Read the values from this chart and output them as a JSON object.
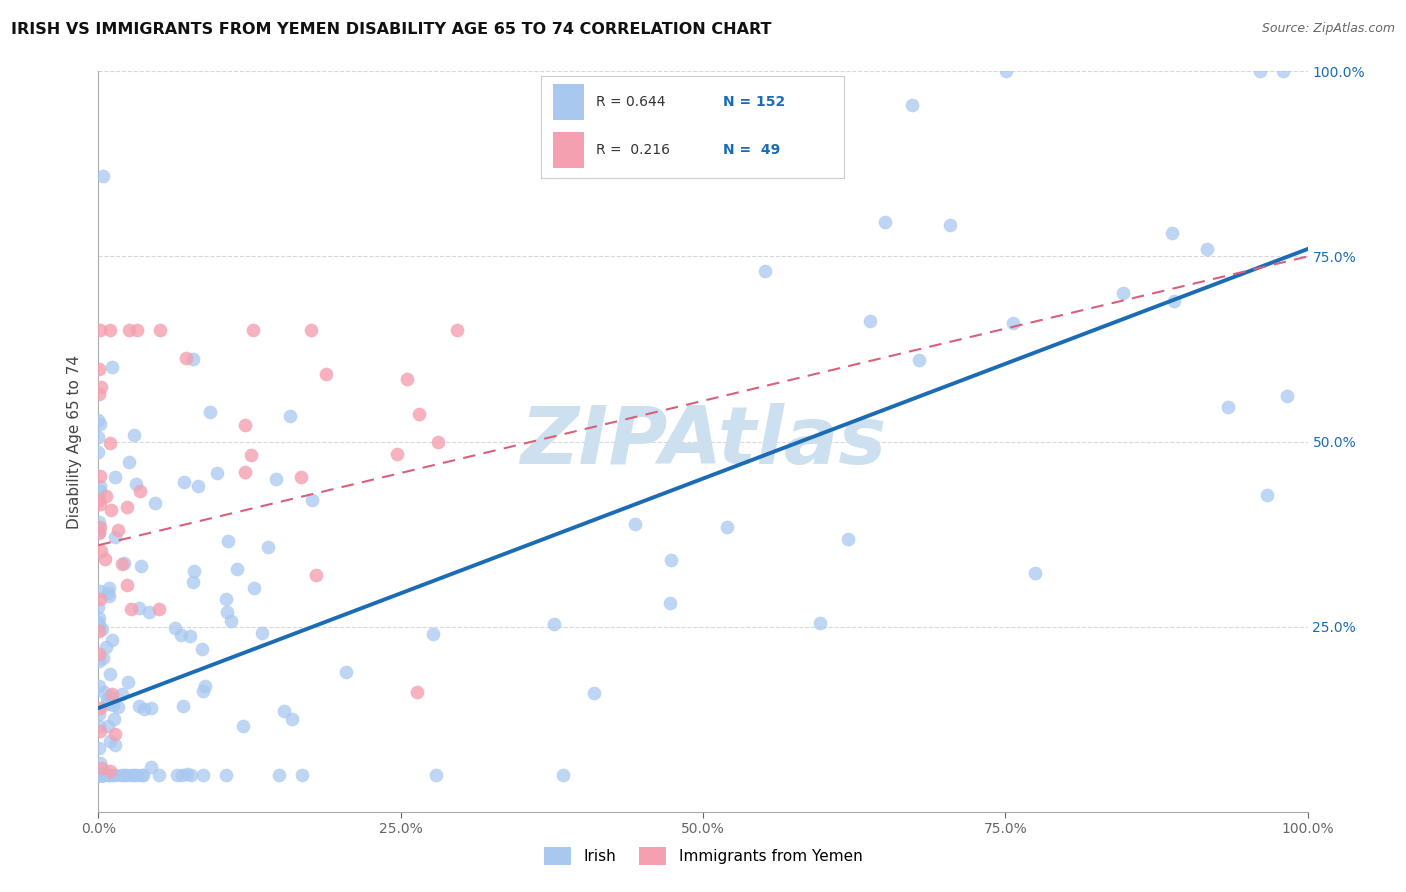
{
  "title": "IRISH VS IMMIGRANTS FROM YEMEN DISABILITY AGE 65 TO 74 CORRELATION CHART",
  "source": "Source: ZipAtlas.com",
  "ylabel": "Disability Age 65 to 74",
  "legend_irish": "Irish",
  "legend_yemen": "Immigrants from Yemen",
  "r_irish": 0.644,
  "n_irish": 152,
  "r_yemen": 0.216,
  "n_yemen": 49,
  "irish_color": "#a8c8f0",
  "yemen_color": "#f4a0b0",
  "irish_line_color": "#1b6bb5",
  "yemen_line_color": "#d9607a",
  "background_color": "#ffffff",
  "grid_color": "#d8d8d8",
  "irish_line": [
    0.0,
    0.14,
    1.0,
    0.76
  ],
  "yemen_line": [
    0.0,
    0.36,
    1.0,
    0.75
  ],
  "watermark_color": "#cde0f0",
  "right_tick_color": "#1b6bb5",
  "title_fontsize": 11.5,
  "source_fontsize": 9,
  "axis_label_fontsize": 11,
  "tick_fontsize": 10
}
